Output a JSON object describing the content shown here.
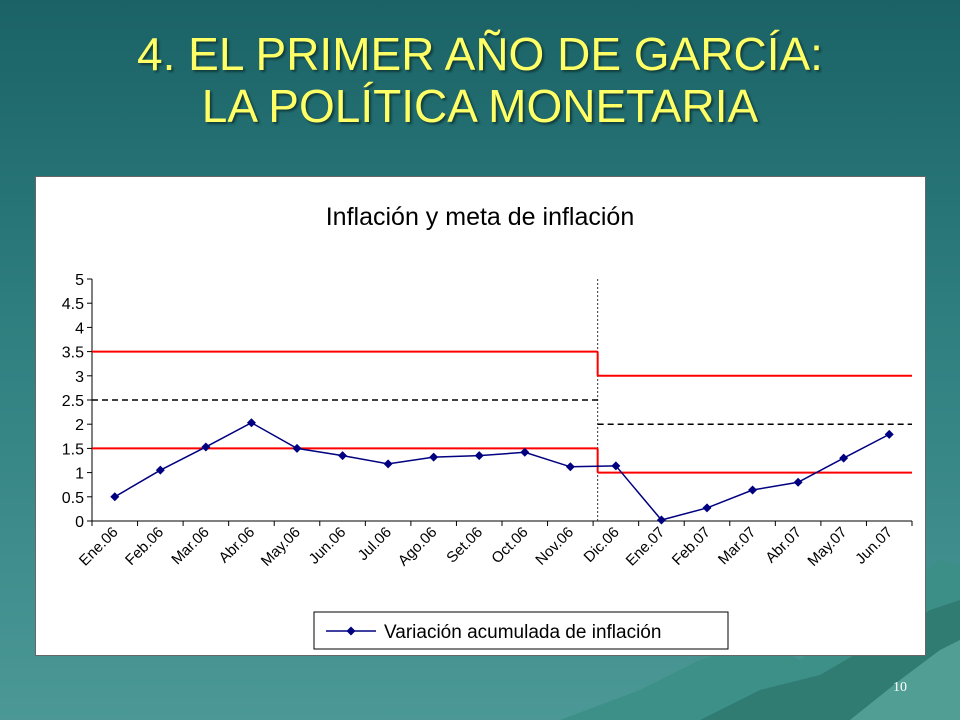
{
  "slide": {
    "title_line1": "4.  EL PRIMER AÑO DE GARCÍA:",
    "title_line2": "LA POLÍTICA MONETARIA",
    "page_number": "10"
  },
  "colors": {
    "background": "#2f7f80",
    "title": "#ffff66",
    "series": "#000080",
    "band": "#ff0000",
    "target": "#000000"
  },
  "chart_data": {
    "type": "line",
    "title": "Inflación y meta de inflación",
    "categories": [
      "Ene.06",
      "Feb.06",
      "Mar.06",
      "Abr.06",
      "May.06",
      "Jun.06",
      "Jul.06",
      "Ago.06",
      "Set.06",
      "Oct.06",
      "Nov.06",
      "Dic.06",
      "Ene.07",
      "Feb.07",
      "Mar.07",
      "Abr.07",
      "May.07",
      "Jun.07"
    ],
    "series": [
      {
        "name": "Variación acumulada de inflación",
        "values": [
          0.5,
          1.05,
          1.53,
          2.03,
          1.5,
          1.35,
          1.18,
          1.32,
          1.35,
          1.42,
          1.12,
          1.14,
          0.02,
          0.27,
          0.64,
          0.8,
          1.3,
          1.79
        ]
      }
    ],
    "target_bands": [
      {
        "period": "2006",
        "upper": 3.5,
        "target": 2.5,
        "lower": 1.5
      },
      {
        "period": "2007",
        "upper": 3.0,
        "target": 2.0,
        "lower": 1.0
      }
    ],
    "y_ticks": [
      "0",
      "0.5",
      "1",
      "1.5",
      "2",
      "2.5",
      "3",
      "3.5",
      "4",
      "4.5",
      "5"
    ],
    "ylim": [
      0,
      5
    ],
    "grid": false,
    "legend": "bottom"
  }
}
